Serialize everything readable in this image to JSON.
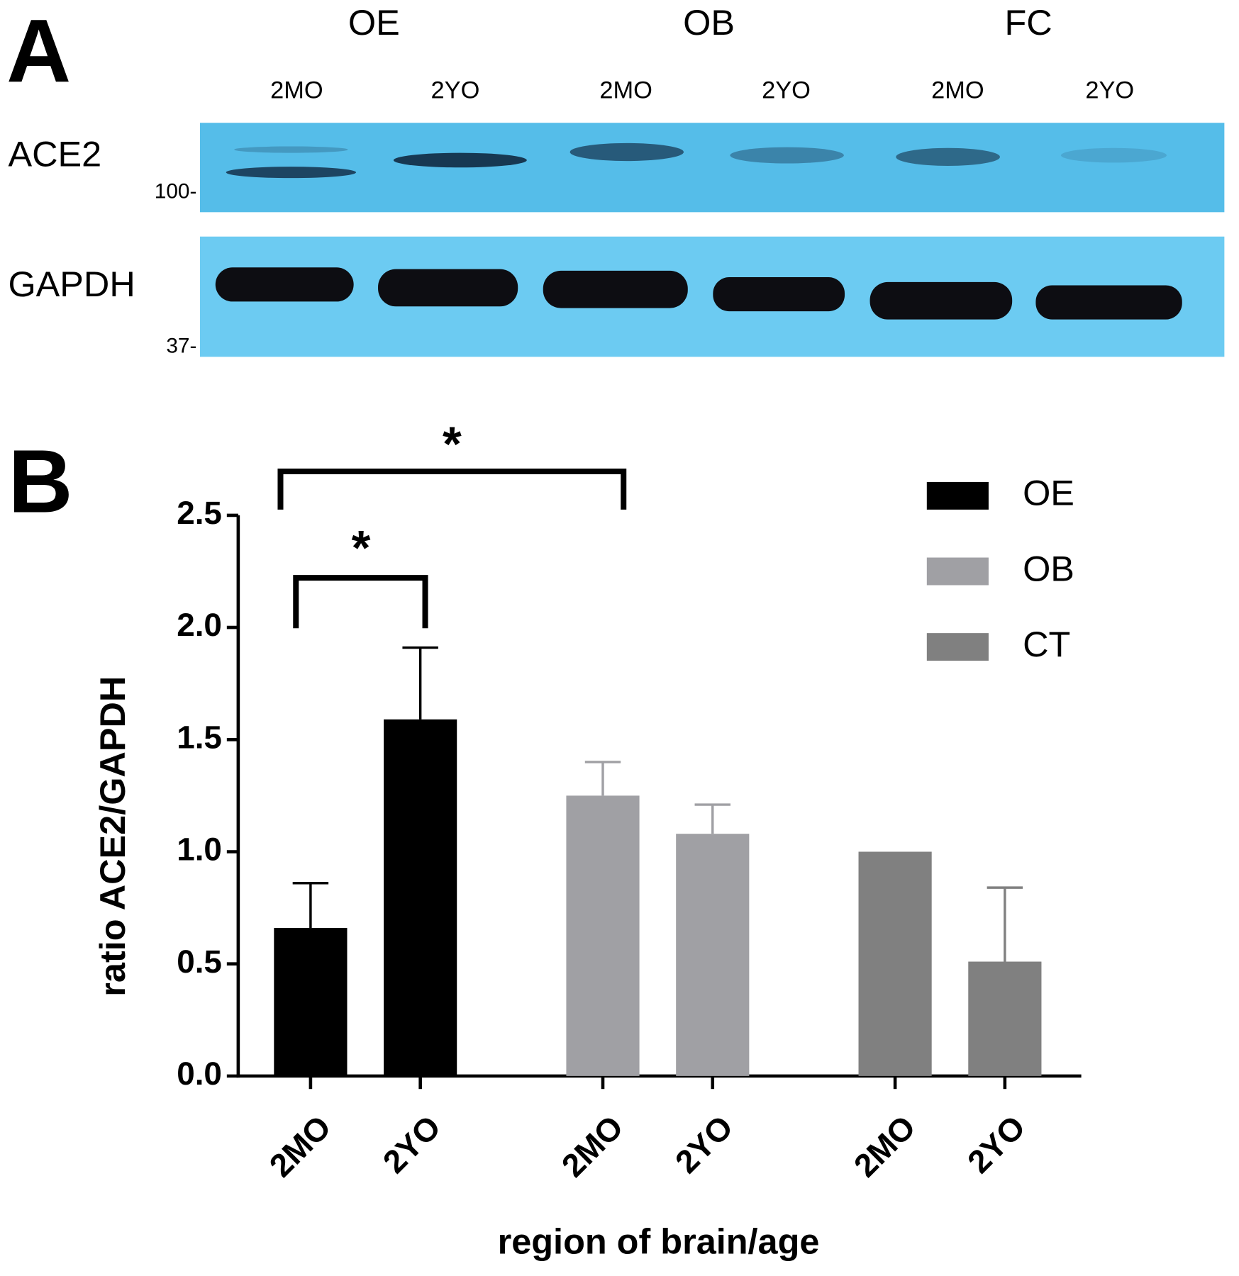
{
  "panel_a": {
    "label": "A",
    "groups": [
      "OE",
      "OB",
      "FC"
    ],
    "lanes": [
      "2MO",
      "2YO",
      "2MO",
      "2YO",
      "2MO",
      "2YO"
    ],
    "rows": [
      {
        "name": "ACE2",
        "marker": "100-"
      },
      {
        "name": "GAPDH",
        "marker": "37-"
      }
    ]
  },
  "panel_b_label": "B",
  "chart_data": {
    "type": "bar",
    "y_label": "ratio ACE2/GAPDH",
    "x_label": "region of brain/age",
    "categories": [
      "2MO",
      "2YO",
      "2MO",
      "2YO",
      "2MO",
      "2YO"
    ],
    "series": [
      {
        "name": "OE",
        "color": "#000000",
        "values": [
          0.66,
          1.59,
          null,
          null,
          null,
          null
        ],
        "errors": [
          0.2,
          0.32,
          null,
          null,
          null,
          null
        ]
      },
      {
        "name": "OB",
        "color": "#a0a0a4",
        "values": [
          null,
          null,
          1.25,
          1.08,
          null,
          null
        ],
        "errors": [
          null,
          null,
          0.15,
          0.13,
          null,
          null
        ]
      },
      {
        "name": "CT",
        "color": "#808080",
        "values": [
          null,
          null,
          null,
          null,
          1.0,
          0.51
        ],
        "errors": [
          null,
          null,
          null,
          null,
          null,
          0.33
        ]
      }
    ],
    "ylim": [
      0,
      2.5
    ],
    "yticks": [
      {
        "value": 0,
        "label": "0.0"
      },
      {
        "value": 0.5,
        "label": "0.5"
      },
      {
        "value": 1,
        "label": "1.0"
      },
      {
        "value": 1.5,
        "label": "1.5"
      },
      {
        "value": 2,
        "label": "2.0"
      },
      {
        "value": 2.5,
        "label": "2.5"
      }
    ],
    "annotations": [
      "*",
      "*"
    ],
    "legend": "top-right"
  }
}
